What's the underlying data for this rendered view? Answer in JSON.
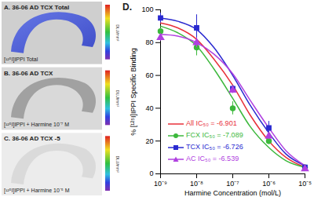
{
  "chart_data": {
    "type": "line",
    "title": "D.",
    "x_label": "Harmine Concentration (mol/L)",
    "y_label": "% [¹²⁵I]IPPI Specific Binding",
    "log": "x",
    "xlim": [
      1e-09,
      1e-05
    ],
    "xticks": [
      {
        "value": 1e-09,
        "label": "10⁻⁹"
      },
      {
        "value": 1e-08,
        "label": "10⁻⁸"
      },
      {
        "value": 1e-07,
        "label": "10⁻⁷"
      },
      {
        "value": 1e-06,
        "label": "10⁻⁶"
      },
      {
        "value": 1e-05,
        "label": "10⁻⁵"
      }
    ],
    "ylim": [
      0,
      100
    ],
    "yticks": [
      0,
      20,
      40,
      60,
      80,
      100
    ],
    "legend": "lower left",
    "x": [
      1e-09,
      1e-08,
      1e-07,
      1e-06,
      1e-05
    ],
    "fit_x": [
      1e-09,
      3e-09,
      1e-08,
      3e-08,
      1e-07,
      3e-07,
      1e-06,
      3e-06,
      1e-05
    ],
    "series": [
      {
        "name": "All IC₅₀ = -6.901",
        "color": "#e8303a",
        "marker": "none",
        "fit_values": [
          92,
          89,
          82,
          70,
          54,
          36,
          20,
          10,
          4
        ]
      },
      {
        "name": "FCX IC₅₀ = -7.089",
        "color": "#3cb83c",
        "marker": "circle",
        "values": [
          87,
          77,
          40,
          20,
          4
        ],
        "error": [
          2,
          5,
          4,
          2,
          1
        ],
        "fit_values": [
          90,
          86,
          78,
          64,
          46,
          29,
          16,
          8,
          4
        ]
      },
      {
        "name": "TCX IC₅₀ = -6.726",
        "color": "#2a2ad0",
        "marker": "square",
        "values": [
          95,
          89,
          52,
          28,
          4
        ],
        "error": [
          3,
          8,
          2,
          4,
          1
        ],
        "fit_values": [
          95,
          93,
          88,
          77,
          60,
          42,
          25,
          12,
          5
        ]
      },
      {
        "name": "AC IC₅₀ = -6.539",
        "color": "#b040e0",
        "marker": "triangle",
        "values": [
          83,
          80,
          51,
          23,
          3
        ],
        "error": [
          2,
          3,
          2,
          2,
          1
        ],
        "fit_values": [
          85,
          84,
          80,
          73,
          61,
          45,
          28,
          14,
          5
        ]
      }
    ]
  },
  "images": [
    {
      "title": "A. 36-06 AD TCX Total",
      "caption": "[¹²⁵I]IPPI Total",
      "colorbar_label": "DLU/mm²"
    },
    {
      "title": "B. 36-06 AD TCX",
      "caption": "[¹²⁵I]IPPI + Harmine 10⁻⁷ M",
      "colorbar_label": "DLU/mm²"
    },
    {
      "title": "C. 36-06 AD TCX -5",
      "caption": "[¹²⁵I]IPPI + Harmine 10⁻⁵ M",
      "colorbar_label": "DLU/mm²"
    }
  ]
}
